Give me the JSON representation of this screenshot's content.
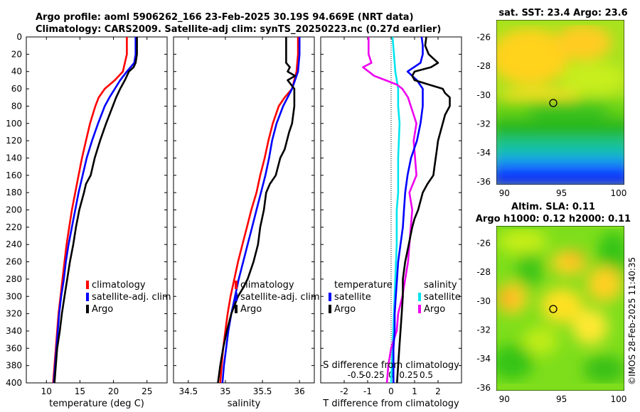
{
  "header": {
    "line1": "Argo profile: aoml 5906262_166 23-Feb-2025 30.19S 94.669E (NRT data)",
    "line2": "Climatology: CARS2009. Satellite-adj clim: synTS_20250223.nc (0.27d earlier)"
  },
  "credit": "©IMOS 28-Feb-2025 11:40:35",
  "colors": {
    "climatology": "#ff0000",
    "satellite": "#0000ff",
    "argo": "#000000",
    "sal_satellite": "#00e5ee",
    "sal_argo": "#ee00ee"
  },
  "chart_data": [
    {
      "type": "line",
      "id": "temperature",
      "xlabel": "temperature (deg C)",
      "ylabel": "depth",
      "xlim": [
        7,
        28
      ],
      "ylim": [
        400,
        0
      ],
      "xticks": [
        "10",
        "15",
        "20",
        "25"
      ],
      "yticks": [
        "0",
        "20",
        "40",
        "60",
        "80",
        "100",
        "120",
        "140",
        "160",
        "180",
        "200",
        "220",
        "240",
        "260",
        "280",
        "300",
        "320",
        "340",
        "360",
        "380",
        "400"
      ],
      "legend": [
        "climatology",
        "satellite-adj. clim",
        "Argo"
      ],
      "series": [
        {
          "name": "climatology",
          "depth": [
            0,
            20,
            40,
            50,
            60,
            70,
            80,
            90,
            100,
            120,
            140,
            160,
            180,
            200,
            220,
            240,
            260,
            280,
            300,
            320,
            340,
            360,
            380,
            400
          ],
          "values": [
            22.0,
            22.0,
            21.4,
            20.2,
            18.7,
            17.8,
            17.3,
            16.9,
            16.5,
            15.9,
            15.3,
            14.8,
            14.3,
            13.8,
            13.4,
            13.0,
            12.7,
            12.4,
            12.1,
            11.8,
            11.6,
            11.4,
            11.2,
            11.0
          ]
        },
        {
          "name": "satellite-adj. clim",
          "depth": [
            0,
            20,
            30,
            40,
            50,
            60,
            70,
            80,
            90,
            100,
            120,
            140,
            160,
            180,
            200,
            220,
            240,
            260,
            280,
            300,
            320,
            340,
            360,
            380,
            400
          ],
          "values": [
            23.3,
            23.3,
            23.1,
            22.0,
            21.0,
            20.2,
            19.4,
            18.7,
            18.2,
            17.7,
            16.8,
            16.0,
            15.4,
            14.8,
            14.3,
            13.8,
            13.3,
            12.9,
            12.6,
            12.2,
            11.9,
            11.7,
            11.5,
            11.3,
            11.1
          ]
        },
        {
          "name": "Argo",
          "depth": [
            0,
            20,
            30,
            35,
            40,
            50,
            60,
            70,
            80,
            90,
            100,
            120,
            140,
            160,
            170,
            180,
            200,
            220,
            240,
            260,
            280,
            300,
            320,
            340,
            360,
            380,
            400
          ],
          "values": [
            23.5,
            23.5,
            23.3,
            23.0,
            22.3,
            21.7,
            21.0,
            20.4,
            19.9,
            19.4,
            18.9,
            18.0,
            17.2,
            16.6,
            15.9,
            15.6,
            14.9,
            14.4,
            14.0,
            13.5,
            13.1,
            12.7,
            12.3,
            12.0,
            11.6,
            11.4,
            11.2
          ]
        }
      ]
    },
    {
      "type": "line",
      "id": "salinity",
      "xlabel": "salinity",
      "xlim": [
        34.3,
        36.2
      ],
      "ylim": [
        400,
        0
      ],
      "xticks": [
        "34.5",
        "35",
        "35.5",
        "36"
      ],
      "legend": [
        "climatology",
        "satellite-adj. clim",
        "Argo"
      ],
      "series": [
        {
          "name": "climatology",
          "depth": [
            0,
            20,
            40,
            60,
            70,
            80,
            100,
            120,
            140,
            160,
            180,
            200,
            220,
            240,
            260,
            280,
            300,
            320,
            340,
            360,
            380,
            400
          ],
          "values": [
            35.98,
            35.98,
            35.96,
            35.9,
            35.8,
            35.72,
            35.64,
            35.58,
            35.53,
            35.47,
            35.42,
            35.35,
            35.29,
            35.23,
            35.17,
            35.12,
            35.07,
            35.03,
            35.0,
            34.97,
            34.95,
            34.93
          ]
        },
        {
          "name": "satellite-adj. clim",
          "depth": [
            0,
            20,
            40,
            60,
            80,
            100,
            120,
            140,
            160,
            180,
            200,
            220,
            240,
            260,
            280,
            300,
            320,
            340,
            360,
            380,
            400
          ],
          "values": [
            36.0,
            36.0,
            35.98,
            35.9,
            35.78,
            35.69,
            35.63,
            35.59,
            35.54,
            35.48,
            35.42,
            35.36,
            35.3,
            35.24,
            35.18,
            35.13,
            35.08,
            35.04,
            35.01,
            34.98,
            34.96
          ]
        },
        {
          "name": "Argo",
          "depth": [
            0,
            5,
            10,
            20,
            30,
            35,
            40,
            45,
            50,
            60,
            80,
            100,
            110,
            130,
            140,
            160,
            170,
            180,
            200,
            220,
            240,
            260,
            280,
            290,
            300,
            320,
            340,
            360,
            380,
            400
          ],
          "values": [
            35.82,
            35.82,
            35.82,
            35.82,
            35.82,
            35.87,
            35.84,
            35.94,
            35.84,
            35.93,
            35.93,
            35.9,
            35.86,
            35.8,
            35.74,
            35.68,
            35.6,
            35.55,
            35.52,
            35.47,
            35.44,
            35.38,
            35.3,
            35.24,
            35.17,
            35.08,
            35.02,
            34.97,
            34.93,
            34.9
          ]
        }
      ]
    },
    {
      "type": "line",
      "id": "differences",
      "xlabel": "T difference from climatology",
      "xlabel2": "S difference from climatology",
      "xlim": [
        -3,
        3
      ],
      "ylim": [
        400,
        0
      ],
      "xticks": [
        "-2",
        "-1",
        "0",
        "1",
        "2"
      ],
      "xticks2": [
        "-0.5",
        "-0.25",
        "0",
        "0.25",
        "0.5"
      ],
      "legend_temperature": {
        "title": "temperature",
        "items": [
          "satellite",
          "Argo"
        ]
      },
      "legend_salinity": {
        "title": "salinity",
        "items": [
          "satellite",
          "Argo"
        ]
      },
      "series": [
        {
          "name": "T satellite",
          "depth": [
            0,
            10,
            20,
            30,
            40,
            50,
            60,
            70,
            80,
            100,
            120,
            140,
            160,
            180,
            200,
            220,
            240,
            260,
            280,
            300,
            320,
            340,
            360,
            380,
            400
          ],
          "values": [
            1.3,
            1.35,
            1.35,
            1.25,
            0.7,
            1.1,
            1.35,
            1.35,
            1.35,
            1.25,
            1.1,
            0.85,
            0.7,
            0.6,
            0.55,
            0.5,
            0.4,
            0.3,
            0.25,
            0.2,
            0.15,
            0.15,
            0.1,
            0.1,
            0.1
          ]
        },
        {
          "name": "T Argo",
          "depth": [
            0,
            10,
            20,
            30,
            35,
            40,
            45,
            50,
            55,
            60,
            65,
            70,
            75,
            80,
            85,
            90,
            100,
            110,
            120,
            130,
            140,
            150,
            160,
            170,
            180,
            200,
            210,
            220,
            240,
            260,
            280,
            300,
            320,
            340,
            360,
            380,
            400
          ],
          "values": [
            1.5,
            1.45,
            1.6,
            2.0,
            1.7,
            1.0,
            0.9,
            1.0,
            1.6,
            2.2,
            2.3,
            2.5,
            2.5,
            2.5,
            2.4,
            2.3,
            2.2,
            2.1,
            2.0,
            1.95,
            1.9,
            1.85,
            1.8,
            1.55,
            1.35,
            1.15,
            1.0,
            0.9,
            0.75,
            0.6,
            0.5,
            0.5,
            0.45,
            0.4,
            0.35,
            0.3,
            0.25
          ]
        },
        {
          "name": "S satellite",
          "depth": [
            0,
            20,
            40,
            60,
            80,
            100,
            140,
            180,
            200,
            240,
            280,
            320,
            360,
            400
          ],
          "values": [
            0.01,
            0.02,
            0.03,
            0.05,
            0.05,
            0.06,
            0.05,
            0.05,
            0.04,
            0.04,
            0.03,
            0.02,
            0.01,
            0.0
          ]
        },
        {
          "name": "S Argo",
          "depth": [
            0,
            10,
            20,
            30,
            35,
            40,
            45,
            50,
            55,
            60,
            70,
            80,
            90,
            100,
            120,
            140,
            160,
            180,
            190,
            200,
            220,
            240,
            260,
            280,
            300,
            320,
            340,
            360,
            380,
            400
          ],
          "values": [
            -0.16,
            -0.16,
            -0.16,
            -0.14,
            -0.2,
            -0.16,
            -0.12,
            -0.04,
            0.04,
            0.08,
            0.12,
            0.14,
            0.16,
            0.18,
            0.16,
            0.17,
            0.18,
            0.13,
            0.14,
            0.15,
            0.14,
            0.13,
            0.12,
            0.1,
            0.08,
            0.05,
            0.04,
            0.0,
            -0.02,
            -0.03
          ]
        }
      ]
    },
    {
      "type": "heatmap",
      "id": "sst_map",
      "title": "sat. SST: 23.4 Argo: 23.6",
      "xlim": [
        89.3,
        100.5
      ],
      "ylim": [
        -36.2,
        -24.8
      ],
      "xticks": [
        "90",
        "95",
        "100"
      ],
      "yticks": [
        "-26",
        "-28",
        "-30",
        "-32",
        "-34",
        "-36"
      ],
      "marker": {
        "lon": 94.67,
        "lat": -30.19
      }
    },
    {
      "type": "heatmap",
      "id": "sla_map",
      "title": "Altim. SLA: 0.11",
      "subtitle": "Argo h1000: 0.12 h2000: 0.11",
      "xlim": [
        89.3,
        100.5
      ],
      "ylim": [
        -36.2,
        -24.8
      ],
      "xticks": [
        "90",
        "95",
        "100"
      ],
      "yticks": [
        "-26",
        "-28",
        "-30",
        "-32",
        "-34",
        "-36"
      ],
      "marker": {
        "lon": 94.67,
        "lat": -30.19
      }
    }
  ]
}
